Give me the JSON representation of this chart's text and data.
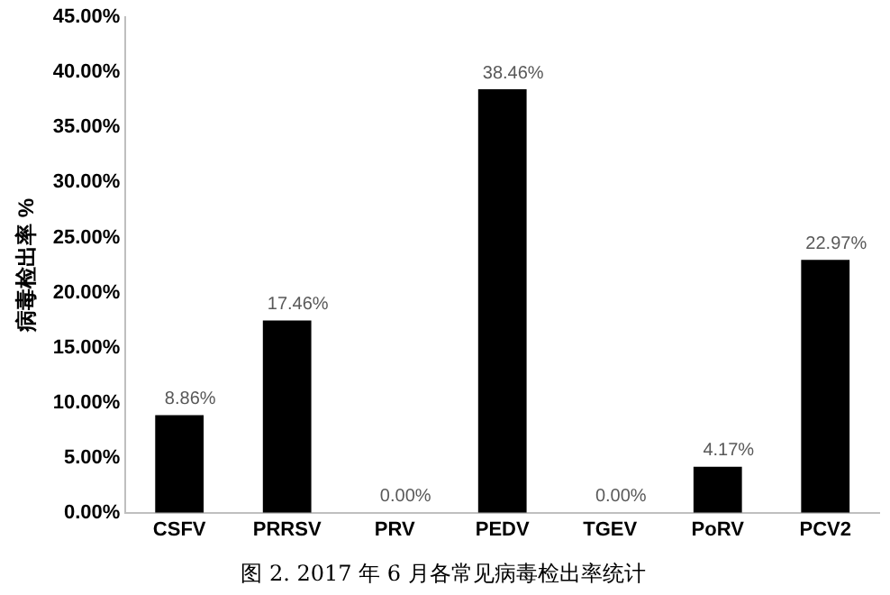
{
  "chart_data": {
    "type": "bar",
    "title": "图 2. 2017 年 6 月各常见病毒检出率统计",
    "ylabel": "病毒检出率 %",
    "categories": [
      "CSFV",
      "PRRSV",
      "PRV",
      "PEDV",
      "TGEV",
      "PoRV",
      "PCV2"
    ],
    "values": [
      8.86,
      17.46,
      0,
      38.46,
      0,
      4.17,
      22.97
    ],
    "value_labels": [
      "8.86%",
      "17.46%",
      "0.00%",
      "38.46%",
      "0.00%",
      "4.17%",
      "22.97%"
    ],
    "color": "#000000",
    "ylim": [
      0,
      45
    ],
    "yticks": [
      {
        "value": 0,
        "label": "0.00%"
      },
      {
        "value": 5,
        "label": "5.00%"
      },
      {
        "value": 10,
        "label": "10.00%"
      },
      {
        "value": 15,
        "label": "15.00%"
      },
      {
        "value": 20,
        "label": "20.00%"
      },
      {
        "value": 25,
        "label": "25.00%"
      },
      {
        "value": 30,
        "label": "30.00%"
      },
      {
        "value": 35,
        "label": "35.00%"
      },
      {
        "value": 40,
        "label": "40.00%"
      },
      {
        "value": 45,
        "label": "45.00%"
      }
    ],
    "grid": false,
    "legend": false
  }
}
